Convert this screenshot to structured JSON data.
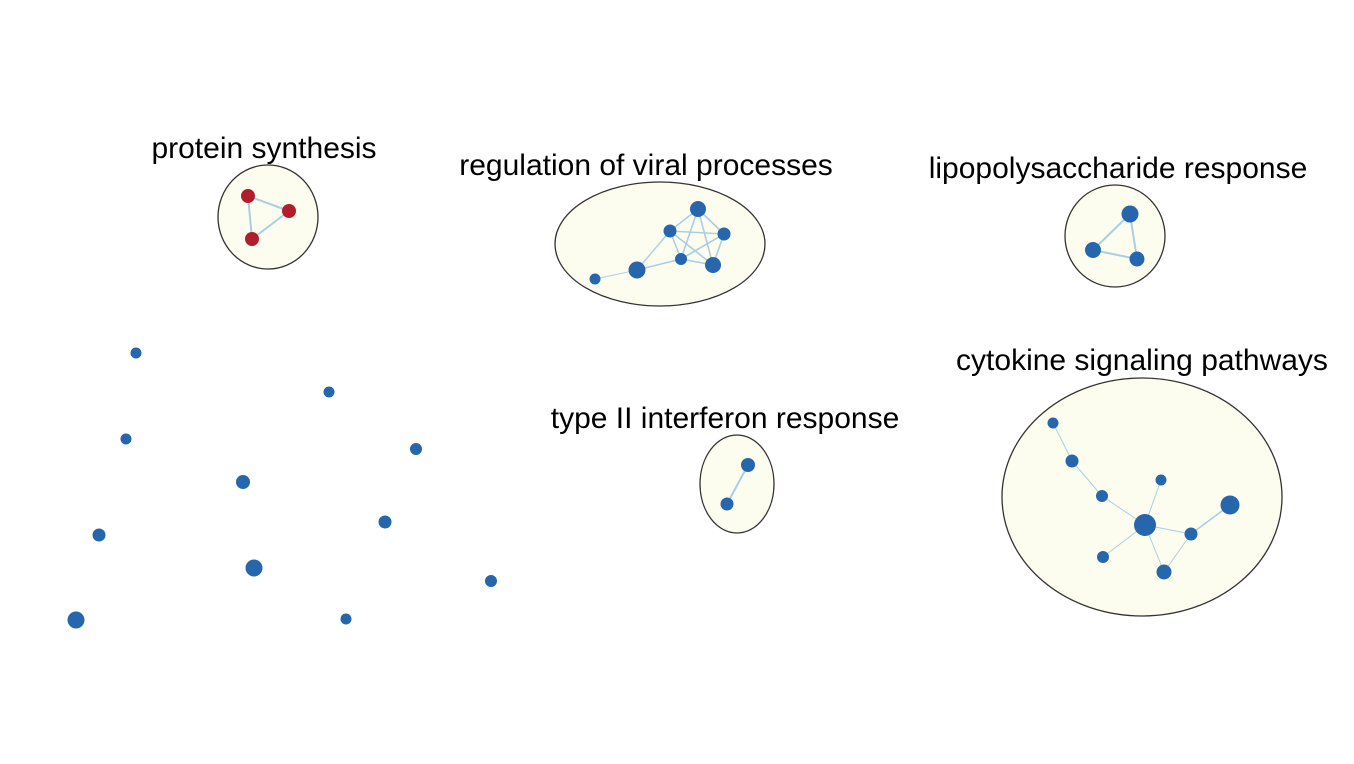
{
  "colors": {
    "background": "#ffffff",
    "cluster_fill": "#fdfdef",
    "cluster_stroke": "#333333",
    "edge": "#a9cfe6",
    "node_blue": "#2566ad",
    "node_red": "#b11d2a",
    "label": "#000000"
  },
  "clusters": [
    {
      "id": "protein-synthesis",
      "label": "protein synthesis",
      "node_color": "red"
    },
    {
      "id": "viral-processes",
      "label": "regulation of viral processes",
      "node_color": "blue"
    },
    {
      "id": "lps-response",
      "label": "lipopolysaccharide response",
      "node_color": "blue"
    },
    {
      "id": "interferon-response",
      "label": "type II interferon response",
      "node_color": "blue"
    },
    {
      "id": "cytokine-signaling",
      "label": "cytokine signaling pathways",
      "node_color": "blue"
    }
  ]
}
